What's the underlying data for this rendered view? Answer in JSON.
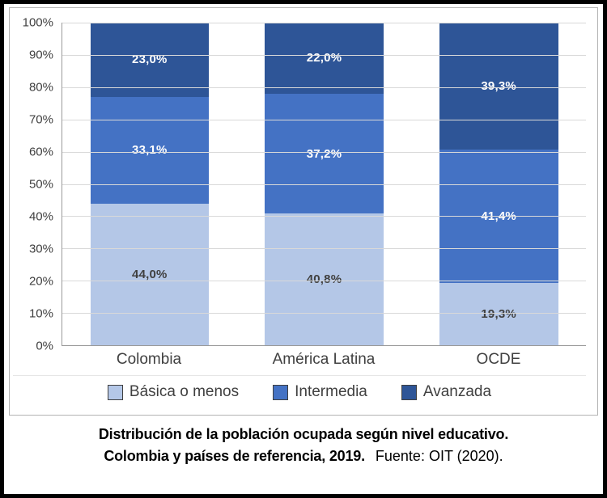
{
  "chart_data": {
    "type": "bar",
    "stacked": true,
    "title": "Distribución de la población ocupada según nivel educativo. Colombia y países de referencia, 2019.",
    "categories": [
      "Colombia",
      "América Latina",
      "OCDE"
    ],
    "series": [
      {
        "name": "Básica o menos",
        "color": "#b4c7e7",
        "label_color": "#404040",
        "values": [
          44.0,
          40.8,
          19.3
        ],
        "labels": [
          "44,0%",
          "40,8%",
          "19,3%"
        ]
      },
      {
        "name": "Intermedia",
        "color": "#4472c4",
        "label_color": "#ffffff",
        "values": [
          33.1,
          37.2,
          41.4
        ],
        "labels": [
          "33,1%",
          "37,2%",
          "41,4%"
        ]
      },
      {
        "name": "Avanzada",
        "color": "#2e5597",
        "label_color": "#ffffff",
        "values": [
          23.0,
          22.0,
          39.3
        ],
        "labels": [
          "23,0%",
          "22,0%",
          "39,3%"
        ]
      }
    ],
    "y_ticks": [
      "100%",
      "90%",
      "80%",
      "70%",
      "60%",
      "50%",
      "40%",
      "30%",
      "20%",
      "10%",
      "0%"
    ],
    "ylim": [
      0,
      100
    ],
    "grid": true,
    "legend_position": "bottom"
  },
  "caption": {
    "line1": "Distribución de la población ocupada según nivel educativo.",
    "line2_bold": "Colombia y países de referencia, 2019.",
    "line2_source": "Fuente: OIT (2020)."
  }
}
